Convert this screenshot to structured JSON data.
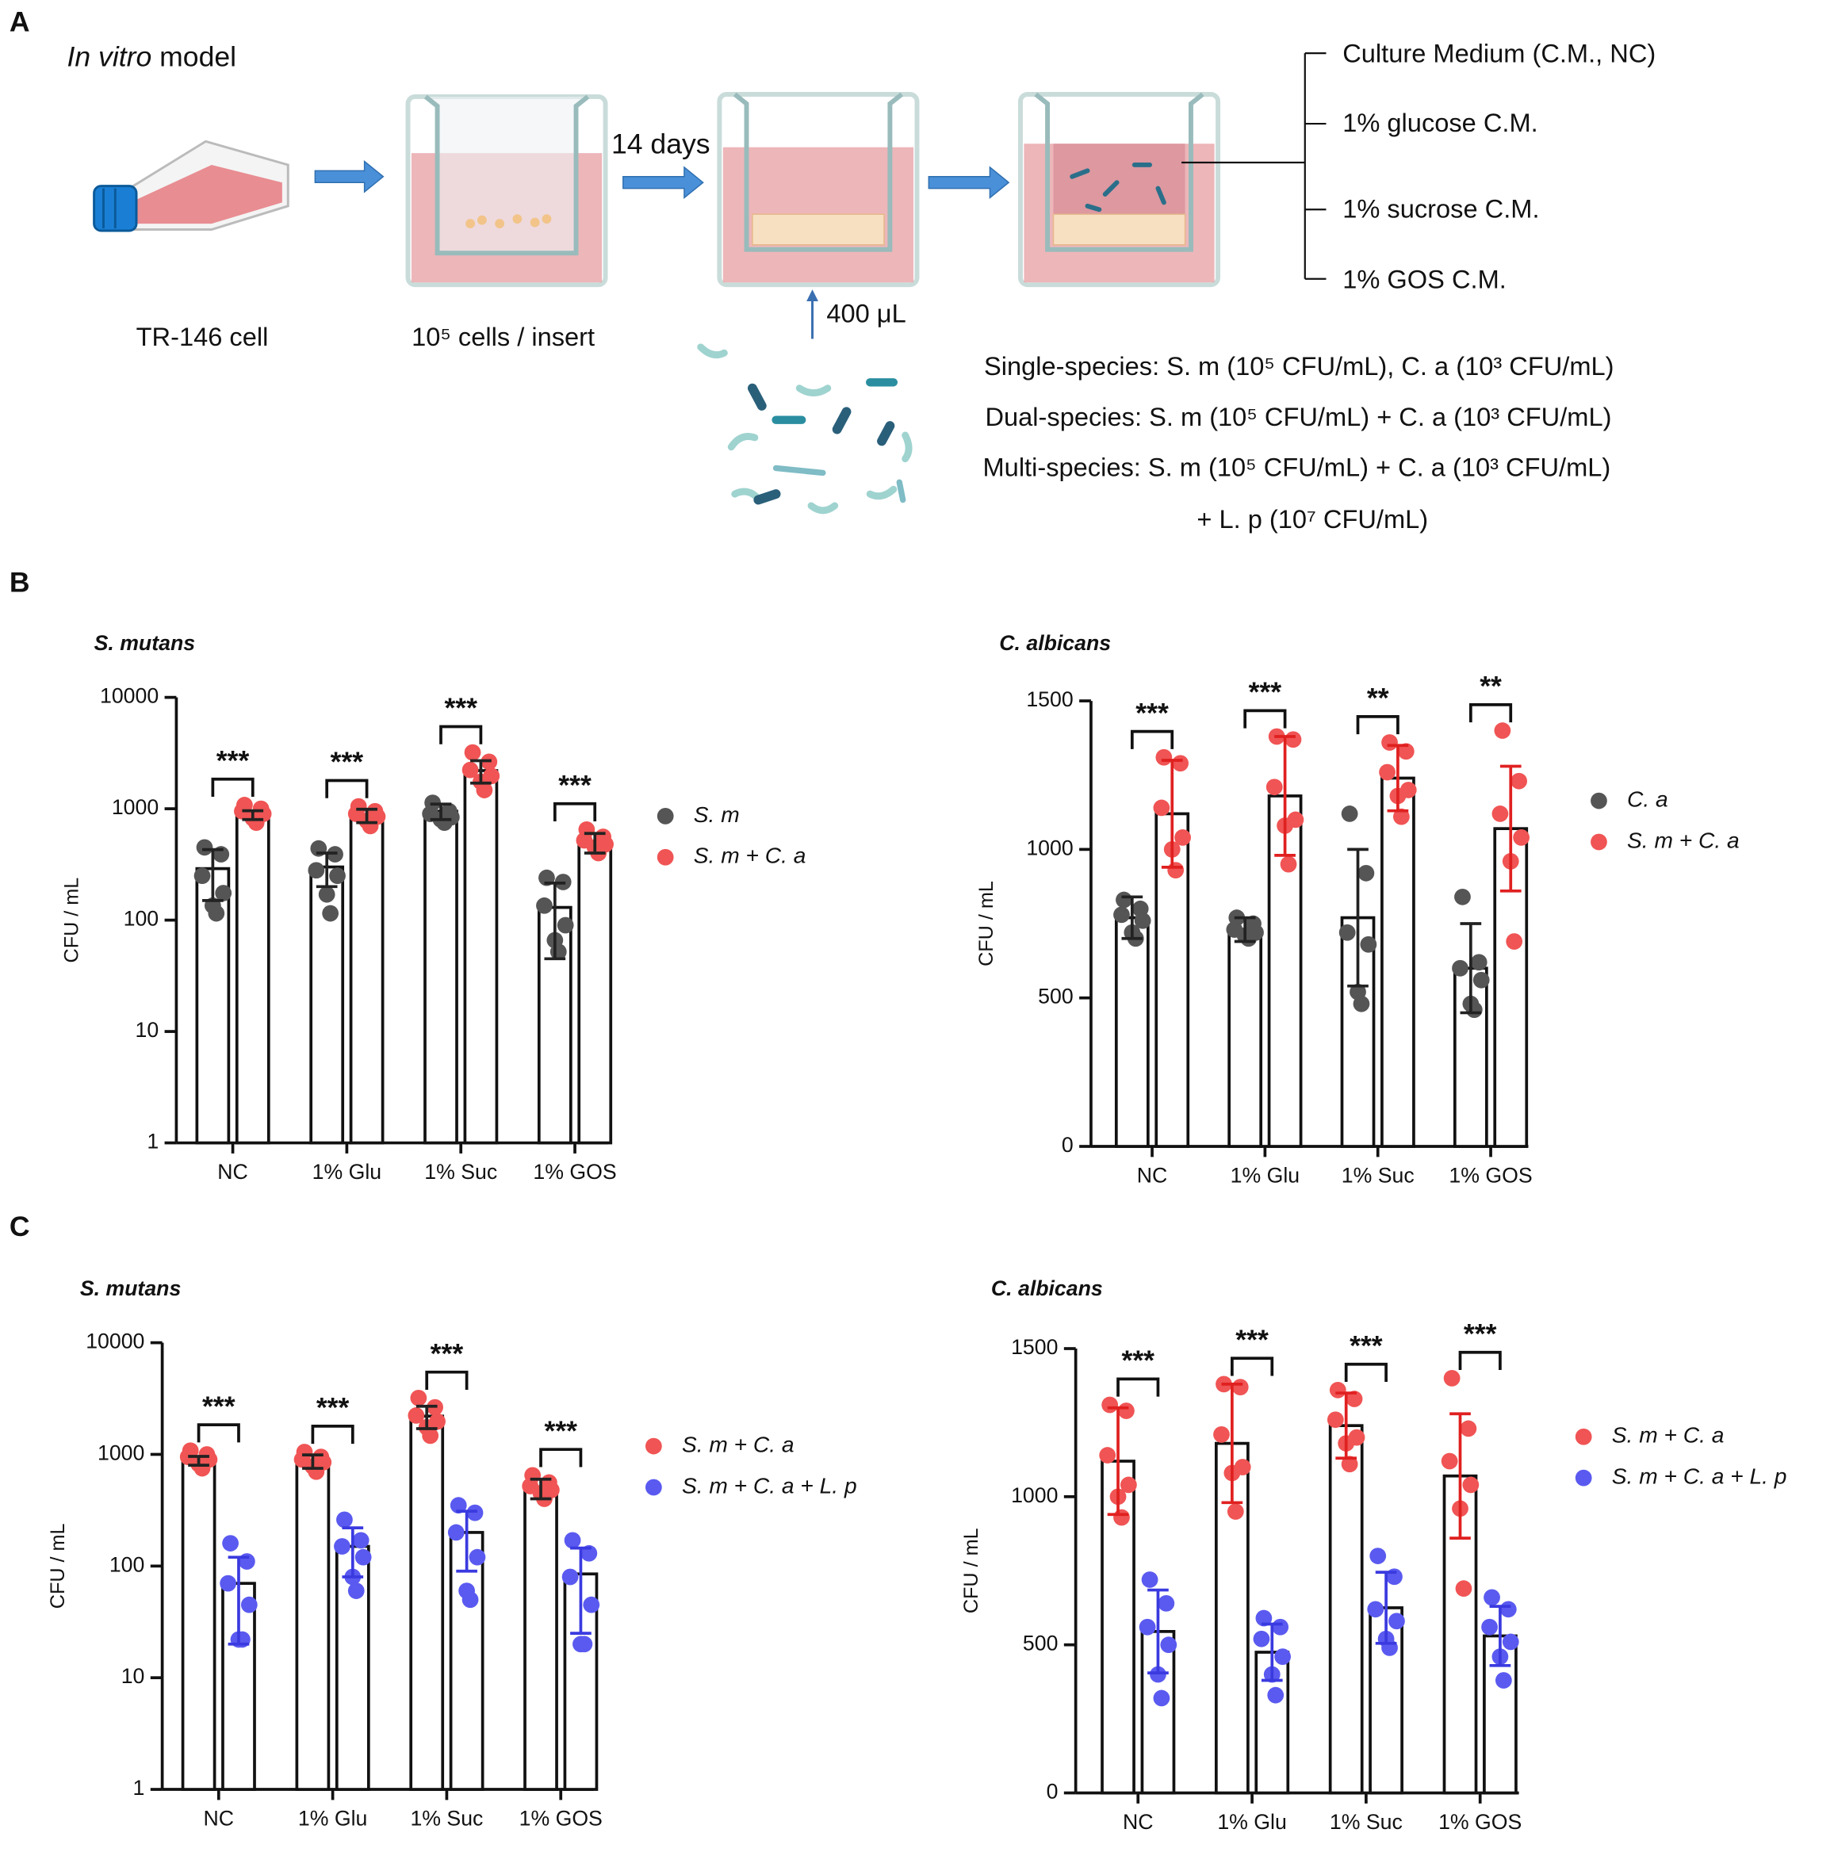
{
  "panel_labels": [
    "A",
    "B",
    "C"
  ],
  "schematic": {
    "title_italic": "In vitro",
    "title_rest": " model",
    "flask_label": "TR-146 cell",
    "seed_label": "10⁵ cells / insert",
    "culture_time": "14 days",
    "inoculum": "400 μL",
    "treatments": [
      "Culture Medium (C.M., NC)",
      "1% glucose C.M.",
      "1% sucrose C.M.",
      "1% GOS C.M."
    ],
    "groups": [
      "Single-species: S. m (10⁵ CFU/mL), C. a (10³ CFU/mL)",
      "Dual-species: S. m (10⁵ CFU/mL) + C. a (10³ CFU/mL)",
      "Multi-species: S. m (10⁵ CFU/mL) + C. a (10³ CFU/mL)",
      "+ L. p (10⁷ CFU/mL)"
    ]
  },
  "chart_data": [
    {
      "type": "bar",
      "title": "S. mutans",
      "ylabel": "CFU / mL",
      "yscale": "log",
      "ylim": [
        1,
        10000
      ],
      "yticks": [
        1,
        10,
        100,
        1000,
        10000
      ],
      "categories": [
        "NC",
        "1% Glu",
        "1% Suc",
        "1% GOS"
      ],
      "significance": [
        "***",
        "***",
        "***",
        "***"
      ],
      "series": [
        {
          "name": "S. m",
          "color": "#555555",
          "error_color": "#222222",
          "values": [
            290,
            300,
            950,
            130
          ],
          "errors": [
            140,
            100,
            150,
            85
          ],
          "points": [
            [
              450,
              390,
              250,
              175,
              135,
              115
            ],
            [
              440,
              390,
              280,
              250,
              170,
              115
            ],
            [
              1130,
              950,
              900,
              840,
              800,
              750
            ],
            [
              240,
              220,
              135,
              90,
              66,
              52
            ]
          ]
        },
        {
          "name": "S. m + C. a",
          "color": "#f05454",
          "error_color": "#222222",
          "values": [
            880,
            870,
            2200,
            500
          ],
          "errors": [
            80,
            120,
            500,
            100
          ],
          "points": [
            [
              1080,
              1000,
              950,
              900,
              820,
              750
            ],
            [
              1050,
              950,
              900,
              850,
              780,
              700
            ],
            [
              3200,
              2640,
              2230,
              1970,
              1750,
              1470
            ],
            [
              650,
              560,
              520,
              480,
              450,
              400
            ]
          ]
        }
      ]
    },
    {
      "type": "bar",
      "title": "C. albicans",
      "ylabel": "CFU / mL",
      "yscale": "linear",
      "ylim": [
        0,
        1500
      ],
      "yticks": [
        0,
        500,
        1000,
        1500
      ],
      "categories": [
        "NC",
        "1% Glu",
        "1% Suc",
        "1% GOS"
      ],
      "significance": [
        "***",
        "***",
        "**",
        "**"
      ],
      "series": [
        {
          "name": "C. a",
          "color": "#555555",
          "error_color": "#222222",
          "values": [
            770,
            730,
            770,
            600
          ],
          "errors": [
            70,
            40,
            230,
            150
          ],
          "points": [
            [
              830,
              800,
              780,
              760,
              720,
              700
            ],
            [
              770,
              750,
              730,
              720,
              710,
              700
            ],
            [
              1120,
              920,
              720,
              680,
              520,
              480
            ],
            [
              840,
              620,
              600,
              560,
              480,
              460
            ]
          ]
        },
        {
          "name": "S. m + C. a",
          "color": "#f05454",
          "error_color": "#e02020",
          "values": [
            1120,
            1180,
            1240,
            1070
          ],
          "errors": [
            180,
            200,
            110,
            210
          ],
          "points": [
            [
              1310,
              1290,
              1140,
              1040,
              1000,
              930
            ],
            [
              1380,
              1370,
              1210,
              1100,
              1080,
              950
            ],
            [
              1360,
              1330,
              1260,
              1200,
              1180,
              1110
            ],
            [
              1400,
              1230,
              1120,
              1040,
              960,
              690
            ]
          ]
        }
      ]
    },
    {
      "type": "bar",
      "title": "S. mutans",
      "ylabel": "CFU / mL",
      "yscale": "log",
      "ylim": [
        1,
        10000
      ],
      "yticks": [
        1,
        10,
        100,
        1000,
        10000
      ],
      "categories": [
        "NC",
        "1% Glu",
        "1% Suc",
        "1% GOS"
      ],
      "significance": [
        "***",
        "***",
        "***",
        "***"
      ],
      "series": [
        {
          "name": "S. m + C. a",
          "color": "#f05454",
          "error_color": "#222222",
          "values": [
            880,
            870,
            2200,
            500
          ],
          "errors": [
            80,
            120,
            500,
            100
          ],
          "points": [
            [
              1080,
              1000,
              950,
              900,
              820,
              750
            ],
            [
              1050,
              950,
              900,
              850,
              780,
              700
            ],
            [
              3200,
              2640,
              2230,
              1970,
              1750,
              1470
            ],
            [
              650,
              560,
              520,
              480,
              450,
              400
            ]
          ]
        },
        {
          "name": "S. m + C. a + L. p",
          "color": "#5a5af0",
          "error_color": "#3a3ae0",
          "values": [
            70,
            150,
            200,
            85
          ],
          "errors": [
            50,
            70,
            110,
            60
          ],
          "points": [
            [
              160,
              110,
              70,
              45,
              22,
              22
            ],
            [
              260,
              170,
              150,
              120,
              80,
              60
            ],
            [
              350,
              300,
              200,
              120,
              60,
              50
            ],
            [
              170,
              130,
              80,
              45,
              20,
              20
            ]
          ]
        }
      ]
    },
    {
      "type": "bar",
      "title": "C. albicans",
      "ylabel": "CFU / mL",
      "yscale": "linear",
      "ylim": [
        0,
        1500
      ],
      "yticks": [
        0,
        500,
        1000,
        1500
      ],
      "categories": [
        "NC",
        "1% Glu",
        "1% Suc",
        "1% GOS"
      ],
      "significance": [
        "***",
        "***",
        "***",
        "***"
      ],
      "series": [
        {
          "name": "S. m + C. a",
          "color": "#f05454",
          "error_color": "#e02020",
          "values": [
            1120,
            1180,
            1240,
            1070
          ],
          "errors": [
            180,
            200,
            110,
            210
          ],
          "points": [
            [
              1310,
              1290,
              1140,
              1040,
              1000,
              930
            ],
            [
              1380,
              1370,
              1210,
              1100,
              1080,
              950
            ],
            [
              1360,
              1330,
              1260,
              1200,
              1180,
              1110
            ],
            [
              1400,
              1230,
              1120,
              1040,
              960,
              690
            ]
          ]
        },
        {
          "name": "S. m + C. a + L. p",
          "color": "#5a5af0",
          "error_color": "#3a3ae0",
          "values": [
            545,
            475,
            625,
            530
          ],
          "errors": [
            140,
            95,
            120,
            100
          ],
          "points": [
            [
              720,
              640,
              560,
              500,
              400,
              320
            ],
            [
              590,
              560,
              520,
              460,
              400,
              330
            ],
            [
              800,
              730,
              620,
              580,
              520,
              490
            ],
            [
              660,
              620,
              560,
              510,
              460,
              380
            ]
          ]
        }
      ]
    }
  ]
}
